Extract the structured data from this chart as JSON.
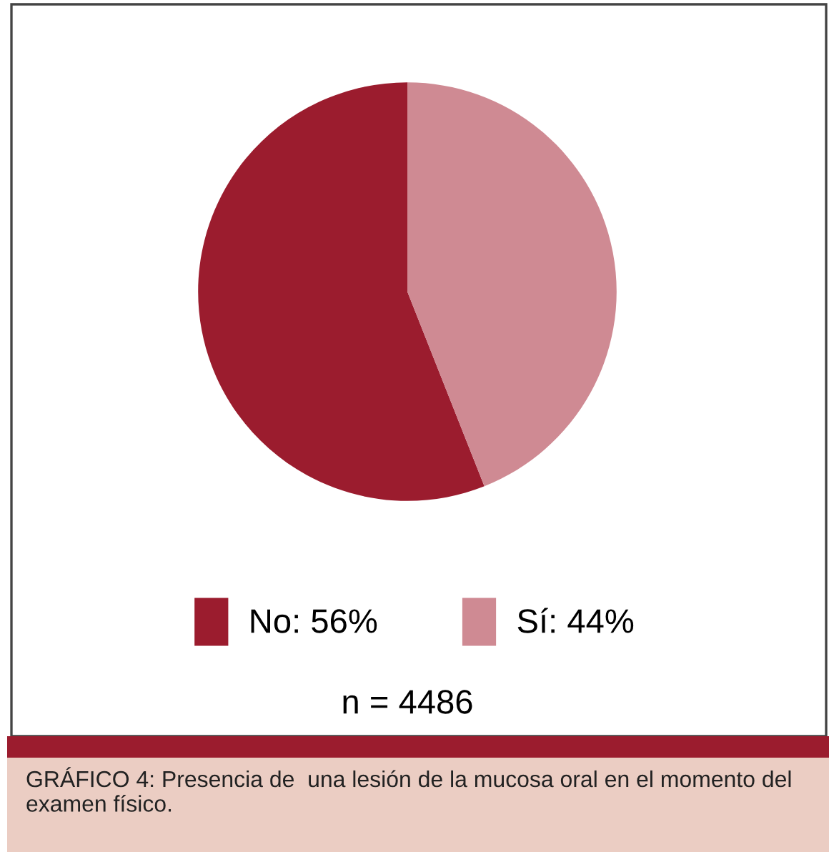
{
  "chart_data": {
    "type": "pie",
    "categories": [
      "No",
      "Sí"
    ],
    "values": [
      56,
      44
    ],
    "value_labels": [
      "56%",
      "44%"
    ],
    "colors": [
      "#9b1c2e",
      "#cf8a93"
    ],
    "legend": "bottom",
    "annotations": [
      "n = 4486",
      "GRÁFICO 4: Presencia de  una lesión de la mucosa oral en el momento del examen físico."
    ]
  }
}
